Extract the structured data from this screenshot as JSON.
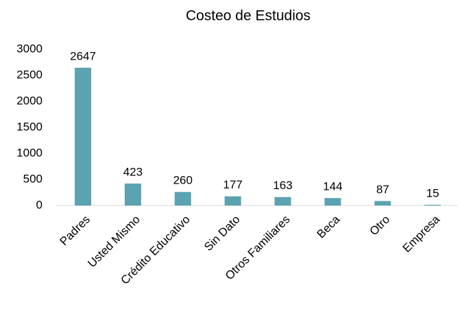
{
  "chart_data": {
    "type": "bar",
    "title": "Costeo de Estudios",
    "categories": [
      "Padres",
      "Usted Mismo",
      "Crédito Educativo",
      "Sin Dato",
      "Otros Familiares",
      "Beca",
      "Otro",
      "Empresa"
    ],
    "values": [
      2647,
      423,
      260,
      177,
      163,
      144,
      87,
      15
    ],
    "color": "#5ba3b0",
    "ylim": [
      0,
      3000
    ],
    "yticks": [
      0,
      500,
      1000,
      1500,
      2000,
      2500,
      3000
    ],
    "grid": false
  }
}
